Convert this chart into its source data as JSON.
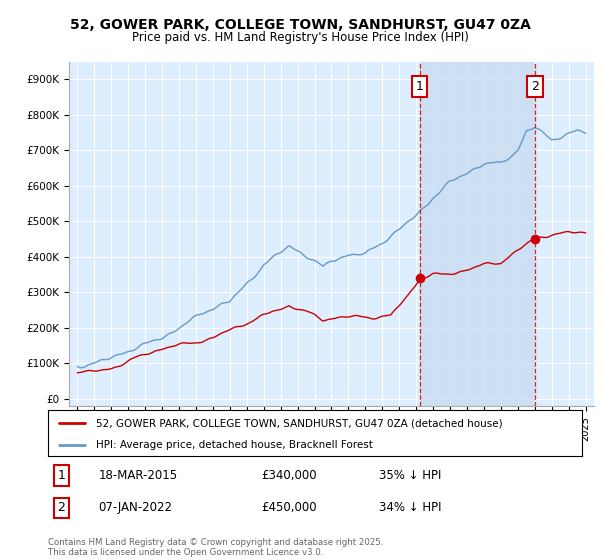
{
  "title_line1": "52, GOWER PARK, COLLEGE TOWN, SANDHURST, GU47 0ZA",
  "title_line2": "Price paid vs. HM Land Registry's House Price Index (HPI)",
  "background_color": "#ffffff",
  "plot_bg_color": "#ddeeff",
  "grid_color": "#ffffff",
  "hpi_color": "#6699cc",
  "price_color": "#cc0000",
  "fill_color": "#c8dcf0",
  "marker1_x": 2015.21,
  "marker2_x": 2022.02,
  "marker1_y_price": 340000,
  "marker2_y_price": 450000,
  "annotation1_date": "18-MAR-2015",
  "annotation1_price": "£340,000",
  "annotation1_pct": "35% ↓ HPI",
  "annotation2_date": "07-JAN-2022",
  "annotation2_price": "£450,000",
  "annotation2_pct": "34% ↓ HPI",
  "legend_line1": "52, GOWER PARK, COLLEGE TOWN, SANDHURST, GU47 0ZA (detached house)",
  "legend_line2": "HPI: Average price, detached house, Bracknell Forest",
  "footnote": "Contains HM Land Registry data © Crown copyright and database right 2025.\nThis data is licensed under the Open Government Licence v3.0.",
  "ylim_max": 950000,
  "ylim_min": -20000,
  "xlim_min": 1994.5,
  "xlim_max": 2025.5
}
